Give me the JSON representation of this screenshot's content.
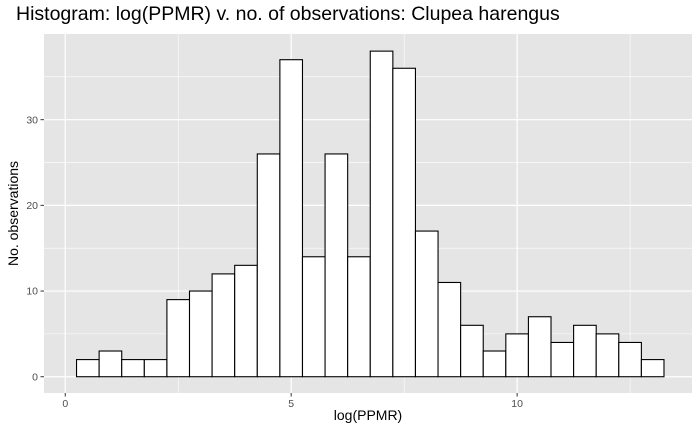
{
  "chart_data": {
    "type": "bar",
    "title": "Histogram: log(PPMR) v. no. of observations: Clupea harengus",
    "xlabel": "log(PPMR)",
    "ylabel": "No. observations",
    "xlim": [
      -0.47,
      13.87
    ],
    "ylim": [
      -1.9,
      40.0
    ],
    "x_ticks": [
      0,
      5,
      10
    ],
    "y_ticks": [
      0,
      10,
      20,
      30
    ],
    "bin_width": 0.5,
    "bin_starts": [
      0.25,
      0.75,
      1.25,
      1.75,
      2.25,
      2.75,
      3.25,
      3.75,
      4.25,
      4.75,
      5.25,
      5.75,
      6.25,
      6.75,
      7.25,
      7.75,
      8.25,
      8.75,
      9.25,
      9.75,
      10.25,
      10.75,
      11.25,
      11.75,
      12.25,
      12.75
    ],
    "values": [
      2,
      3,
      2,
      2,
      9,
      10,
      12,
      13,
      26,
      37,
      14,
      26,
      14,
      38,
      36,
      17,
      11,
      6,
      3,
      5,
      7,
      4,
      6,
      5,
      4,
      2
    ],
    "grid": true,
    "colors": {
      "panel": "#e5e5e5",
      "grid_major": "#ffffff",
      "bar_fill": "#ffffff",
      "bar_stroke": "#000000"
    }
  }
}
